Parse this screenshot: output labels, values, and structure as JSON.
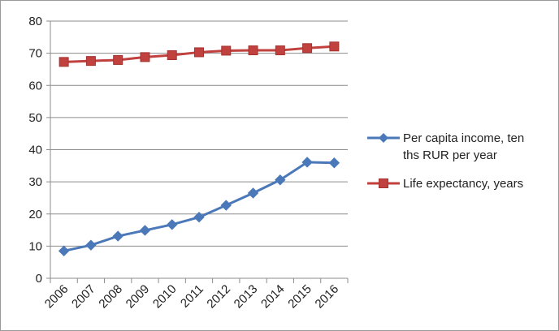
{
  "chart_data": {
    "type": "line",
    "categories": [
      "2006",
      "2007",
      "2008",
      "2009",
      "2010",
      "2011",
      "2012",
      "2013",
      "2014",
      "2015",
      "2016"
    ],
    "series": [
      {
        "name": "Per capita income, ten ths RUR per year",
        "legend_lines": [
          "Per capita income, ten",
          "ths RUR per year"
        ],
        "values": [
          8.5,
          10.3,
          13.1,
          14.9,
          16.7,
          19.0,
          22.7,
          26.5,
          30.6,
          36.1,
          35.9
        ],
        "color": "#4a78b8",
        "marker": "diamond"
      },
      {
        "name": "Life expectancy, years",
        "legend_lines": [
          "Life expectancy, years"
        ],
        "values": [
          67.3,
          67.6,
          67.9,
          68.8,
          69.4,
          70.3,
          70.8,
          70.9,
          70.9,
          71.6,
          72.1
        ],
        "color": "#c0413e",
        "marker": "square"
      }
    ],
    "ylim": [
      0,
      80
    ],
    "yticks": [
      0,
      10,
      20,
      30,
      40,
      50,
      60,
      70,
      80
    ],
    "grid": true,
    "legend_position": "right"
  }
}
